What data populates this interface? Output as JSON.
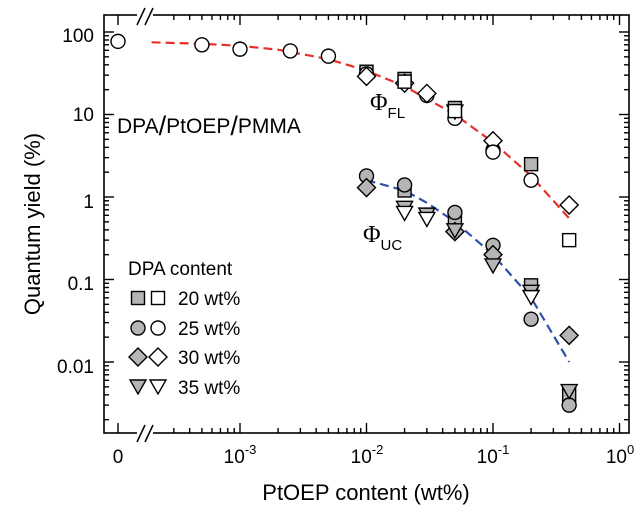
{
  "chart_data": {
    "type": "scatter",
    "xlabel": "PtOEP content (wt%)",
    "ylabel": "Quantum yield (%)",
    "x_scale": "log",
    "y_scale": "log",
    "xlim": [
      0.0001,
      1
    ],
    "ylim": [
      0.002,
      100
    ],
    "x_zero_point": {
      "label": "0",
      "has_axis_break": true
    },
    "x_tick_labels": [
      "0",
      "10",
      "10",
      "10",
      "10"
    ],
    "x_tick_exponents": [
      "",
      "-3",
      "-2",
      "-1",
      "0"
    ],
    "y_tick_labels": [
      "100",
      "10",
      "1",
      "0.1",
      "0.01"
    ],
    "annotations": {
      "system": [
        "DPA",
        "/",
        "PtOEP",
        "/",
        "PMMA"
      ],
      "phi_fl": {
        "symbol": "Φ",
        "sub": "FL"
      },
      "phi_uc": {
        "symbol": "Φ",
        "sub": "UC"
      }
    },
    "legend": {
      "title": "DPA content",
      "placement": "lower-left",
      "entries": [
        {
          "label": "20 wt%",
          "marker": "square"
        },
        {
          "label": "25 wt%",
          "marker": "circle"
        },
        {
          "label": "30 wt%",
          "marker": "diamond"
        },
        {
          "label": "35 wt%",
          "marker": "triangle-down"
        }
      ]
    },
    "fit_lines": [
      {
        "color": "#e8302a",
        "dashed": true,
        "x": [
          0.0002,
          0.0005,
          0.001,
          0.002,
          0.005,
          0.01,
          0.02,
          0.05,
          0.1,
          0.2,
          0.4
        ],
        "y": [
          75,
          72,
          68,
          61,
          47,
          34,
          22,
          10,
          4.6,
          1.8,
          0.55
        ]
      },
      {
        "color": "#2f4fa8",
        "dashed": true,
        "x": [
          0.01,
          0.02,
          0.03,
          0.05,
          0.1,
          0.2,
          0.4
        ],
        "y": [
          1.6,
          1.2,
          0.85,
          0.5,
          0.2,
          0.06,
          0.01
        ]
      }
    ],
    "fl_series": [
      {
        "name": "20 wt%",
        "marker": "square",
        "fill": "#b5b5b5",
        "x": [
          0.01,
          0.02,
          0.05,
          0.2
        ],
        "y": [
          33,
          27,
          12,
          2.5
        ]
      },
      {
        "name": "25 wt%",
        "marker": "circle",
        "fill": "#ffffff",
        "x": [
          "0",
          0.0005,
          0.001,
          0.0025,
          0.005,
          0.01,
          0.03,
          0.05,
          0.1,
          0.2
        ],
        "y": [
          77,
          70,
          62,
          59,
          51,
          31,
          17,
          9,
          3.7,
          1.6
        ]
      },
      {
        "name": "30 wt%",
        "marker": "diamond",
        "fill": "#ffffff",
        "x": [
          0.01,
          0.02,
          0.03,
          0.1,
          0.4
        ],
        "y": [
          29,
          24,
          18,
          4.8,
          0.8
        ]
      },
      {
        "name": "35 wt%",
        "marker": "triangle-down",
        "fill": "#ffffff",
        "x": [
          0.05
        ],
        "y": [
          11
        ]
      },
      {
        "name": "20 wt%",
        "marker": "square",
        "fill": "#ffffff",
        "x": [
          0.02,
          0.05,
          0.4
        ],
        "y": [
          25,
          11,
          0.3
        ]
      },
      {
        "name": "25 wt%",
        "marker": "circle",
        "fill": "#ffffff",
        "x": [
          0.1
        ],
        "y": [
          3.5
        ]
      }
    ],
    "uc_series": [
      {
        "name": "20 wt%",
        "marker": "square",
        "fill": "#b5b5b5",
        "x": [
          0.02,
          0.05,
          0.2,
          0.4
        ],
        "y": [
          1.2,
          0.55,
          0.085,
          0.004
        ]
      },
      {
        "name": "25 wt%",
        "marker": "circle",
        "fill": "#b5b5b5",
        "x": [
          0.01,
          0.02,
          0.05,
          0.1,
          0.2,
          0.4
        ],
        "y": [
          1.8,
          1.4,
          0.65,
          0.26,
          0.033,
          0.003
        ]
      },
      {
        "name": "30 wt%",
        "marker": "diamond",
        "fill": "#b5b5b5",
        "x": [
          0.01,
          0.05,
          0.1,
          0.4
        ],
        "y": [
          1.3,
          0.38,
          0.2,
          0.021
        ]
      },
      {
        "name": "35 wt%",
        "marker": "triangle-down",
        "fill": "#b5b5b5",
        "x": [
          0.02,
          0.03,
          0.05,
          0.1,
          0.2,
          0.4
        ],
        "y": [
          0.75,
          0.62,
          0.4,
          0.15,
          0.072,
          0.0045
        ]
      },
      {
        "name": "35 wt%",
        "marker": "triangle-down",
        "fill": "#ffffff",
        "x": [
          0.02,
          0.03,
          0.2
        ],
        "y": [
          0.65,
          0.55,
          0.062
        ]
      }
    ]
  }
}
